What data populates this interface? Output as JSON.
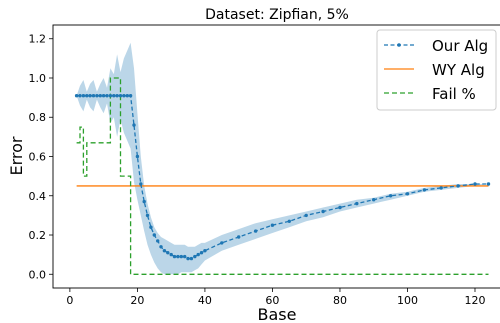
{
  "chart_data": {
    "type": "line",
    "title": "Dataset: Zipfian, 5%",
    "xlabel": "Base",
    "ylabel": "Error",
    "xlim": [
      -5,
      128
    ],
    "ylim": [
      -0.07,
      1.27
    ],
    "xticks": [
      0,
      20,
      40,
      60,
      80,
      100,
      120
    ],
    "yticks": [
      0.0,
      0.2,
      0.4,
      0.6,
      0.8,
      1.0,
      1.2
    ],
    "xtick_labels": [
      "0",
      "20",
      "40",
      "60",
      "80",
      "100",
      "120"
    ],
    "ytick_labels": [
      "0.0",
      "0.2",
      "0.4",
      "0.6",
      "0.8",
      "1.0",
      "1.2"
    ],
    "grid": false,
    "legend_position": "top-right",
    "series": [
      {
        "name": "Our Alg",
        "color": "#1f77b4",
        "style": "dashed-with-markers",
        "x": [
          2,
          3,
          4,
          5,
          6,
          7,
          8,
          9,
          10,
          11,
          12,
          13,
          14,
          15,
          16,
          17,
          18,
          19,
          20,
          21,
          22,
          23,
          24,
          25,
          26,
          27,
          28,
          29,
          30,
          31,
          32,
          33,
          34,
          35,
          36,
          37,
          38,
          39,
          40,
          45,
          50,
          55,
          60,
          65,
          70,
          75,
          80,
          85,
          90,
          95,
          100,
          105,
          110,
          115,
          120,
          124
        ],
        "values": [
          0.91,
          0.91,
          0.91,
          0.91,
          0.91,
          0.91,
          0.91,
          0.91,
          0.91,
          0.91,
          0.91,
          0.91,
          0.91,
          0.91,
          0.91,
          0.91,
          0.91,
          0.76,
          0.6,
          0.46,
          0.37,
          0.3,
          0.24,
          0.2,
          0.17,
          0.14,
          0.12,
          0.11,
          0.1,
          0.09,
          0.09,
          0.09,
          0.09,
          0.08,
          0.08,
          0.09,
          0.1,
          0.11,
          0.12,
          0.16,
          0.19,
          0.22,
          0.25,
          0.27,
          0.3,
          0.32,
          0.34,
          0.36,
          0.38,
          0.4,
          0.41,
          0.43,
          0.44,
          0.45,
          0.46,
          0.46
        ],
        "band_upper": [
          0.91,
          0.96,
          0.99,
          0.93,
          0.97,
          0.99,
          0.93,
          0.97,
          1.0,
          0.95,
          1.05,
          1.02,
          1.12,
          1.03,
          1.1,
          1.14,
          1.18,
          1.05,
          0.82,
          0.6,
          0.45,
          0.36,
          0.29,
          0.24,
          0.21,
          0.19,
          0.18,
          0.17,
          0.16,
          0.15,
          0.15,
          0.15,
          0.15,
          0.14,
          0.14,
          0.14,
          0.15,
          0.16,
          0.16,
          0.2,
          0.23,
          0.26,
          0.28,
          0.3,
          0.32,
          0.34,
          0.36,
          0.38,
          0.39,
          0.41,
          0.42,
          0.44,
          0.45,
          0.46,
          0.46,
          0.46
        ],
        "band_lower": [
          0.91,
          0.86,
          0.83,
          0.89,
          0.85,
          0.83,
          0.89,
          0.85,
          0.82,
          0.87,
          0.77,
          0.8,
          0.7,
          0.79,
          0.72,
          0.68,
          0.64,
          0.47,
          0.38,
          0.3,
          0.22,
          0.15,
          0.1,
          0.06,
          0.03,
          0.01,
          0.0,
          0.0,
          0.0,
          0.0,
          0.0,
          0.01,
          0.01,
          0.01,
          0.01,
          0.02,
          0.03,
          0.05,
          0.07,
          0.12,
          0.15,
          0.18,
          0.21,
          0.24,
          0.27,
          0.29,
          0.32,
          0.34,
          0.36,
          0.38,
          0.4,
          0.42,
          0.43,
          0.44,
          0.45,
          0.46
        ]
      },
      {
        "name": "WY Alg",
        "color": "#ff7f0e",
        "style": "solid",
        "x": [
          2,
          124
        ],
        "values": [
          0.45,
          0.45
        ]
      },
      {
        "name": "Fail %",
        "color": "#2ca02c",
        "style": "dashed-step",
        "x": [
          2,
          3,
          4,
          5,
          6,
          7,
          8,
          9,
          10,
          11,
          12,
          13,
          14,
          15,
          16,
          17,
          18,
          19,
          20,
          21,
          25,
          30,
          40,
          60,
          80,
          100,
          124
        ],
        "values": [
          0.67,
          0.75,
          0.5,
          0.67,
          0.67,
          0.67,
          0.67,
          0.67,
          0.67,
          0.67,
          1.0,
          1.0,
          1.0,
          0.5,
          0.5,
          0.5,
          0.0,
          0.0,
          0.0,
          0.0,
          0.0,
          0.0,
          0.0,
          0.0,
          0.0,
          0.0,
          0.0
        ]
      }
    ]
  }
}
